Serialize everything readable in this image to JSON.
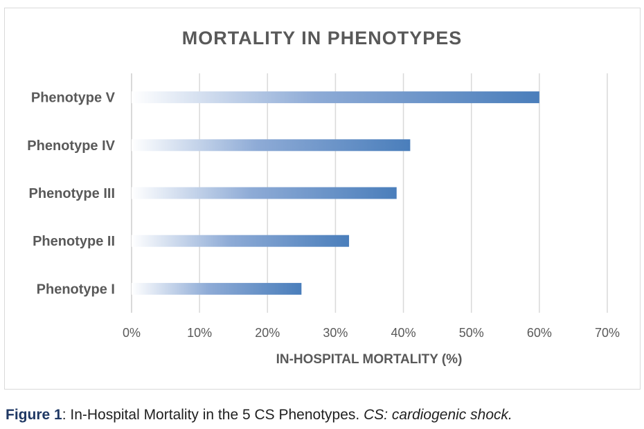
{
  "chart_data": {
    "type": "bar",
    "orientation": "horizontal",
    "title": "MORTALITY IN PHENOTYPES",
    "xlabel": "IN-HOSPITAL MORTALITY (%)",
    "ylabel": "",
    "categories": [
      "Phenotype I",
      "Phenotype II",
      "Phenotype III",
      "Phenotype IV",
      "Phenotype V"
    ],
    "values": [
      25,
      32,
      39,
      41,
      60
    ],
    "xlim": [
      0,
      70
    ],
    "xticks": [
      "0%",
      "10%",
      "20%",
      "30%",
      "40%",
      "50%",
      "60%",
      "70%"
    ],
    "grid": "vertical",
    "legend": "none",
    "bar_color": "#4a7ebb",
    "bar_fill": "gradient-white-to-blue"
  },
  "caption": {
    "label": "Figure 1",
    "text": ": In-Hospital Mortality in the 5 CS Phenotypes. ",
    "note": "CS: cardiogenic shock."
  }
}
